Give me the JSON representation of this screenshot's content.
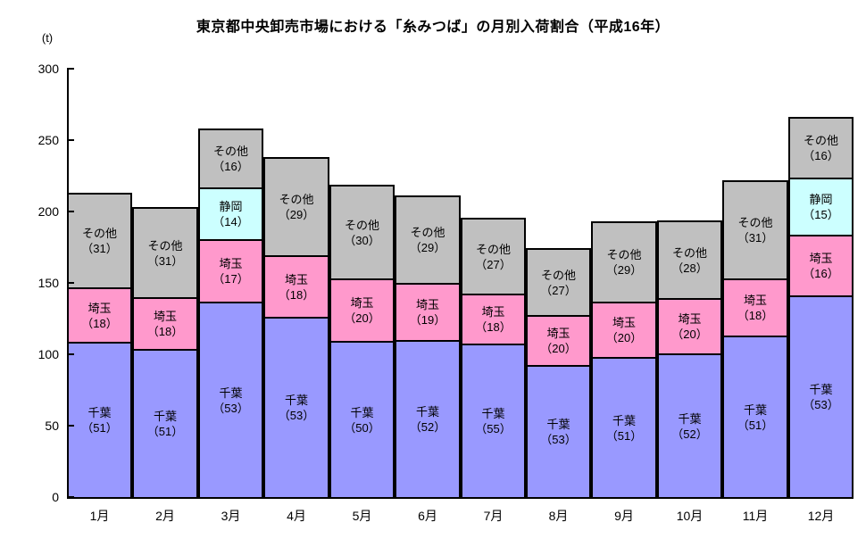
{
  "chart_data": {
    "type": "bar",
    "stacked": true,
    "title": "東京都中央卸売市場における「糸みつば」の月別入荷割合（平成16年）",
    "unit_label": "(t)",
    "ylim": [
      0,
      300
    ],
    "yticks": [
      0,
      50,
      100,
      150,
      200,
      250,
      300
    ],
    "grid": false,
    "legend": "none",
    "categories": [
      "1月",
      "2月",
      "3月",
      "4月",
      "5月",
      "6月",
      "7月",
      "8月",
      "9月",
      "10月",
      "11月",
      "12月"
    ],
    "bar_totals_tons": [
      213,
      203,
      258,
      238,
      219,
      211,
      196,
      174,
      193,
      194,
      222,
      266
    ],
    "stack_order_bottom_to_top": [
      "千葉",
      "埼玉",
      "静岡",
      "その他"
    ],
    "series": [
      {
        "name": "千葉",
        "color": "#9999FF",
        "percent_labels": [
          51,
          51,
          53,
          53,
          50,
          52,
          55,
          53,
          51,
          52,
          51,
          53
        ]
      },
      {
        "name": "埼玉",
        "color": "#FF99CC",
        "percent_labels": [
          18,
          18,
          17,
          18,
          20,
          19,
          18,
          20,
          20,
          20,
          18,
          16
        ]
      },
      {
        "name": "静岡",
        "color": "#CCFFFF",
        "percent_labels": [
          null,
          null,
          14,
          null,
          null,
          null,
          null,
          null,
          null,
          null,
          null,
          15
        ]
      },
      {
        "name": "その他",
        "color": "#C0C0C0",
        "percent_labels": [
          31,
          31,
          16,
          29,
          30,
          29,
          27,
          27,
          29,
          28,
          31,
          16
        ]
      }
    ],
    "label_open_paren": "（",
    "label_close_paren": "）",
    "colors": {
      "border": "#000000",
      "background": "#FFFFFF",
      "axis": "#000000"
    }
  }
}
